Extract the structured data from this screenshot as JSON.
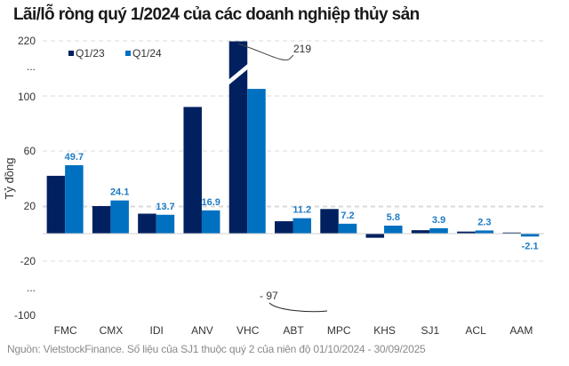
{
  "title": "Lãi/lỗ ròng quý 1/2024 của các doanh nghiệp thủy sản",
  "source": "Nguồn: VietstockFinance. Số liệu của SJ1 thuộc quý 2 của niên độ 01/10/2024  - 30/09/2025",
  "colors": {
    "q1_23": "#002060",
    "q1_24": "#0070c0",
    "label": "#1f7bc4",
    "grid": "#d9d9d9"
  },
  "legend": [
    {
      "name": "Q1/23",
      "color": "#002060"
    },
    {
      "name": "Q1/24",
      "color": "#0070c0"
    }
  ],
  "yaxis": {
    "label": "Tỷ đồng",
    "ticks": [
      "220",
      "...",
      "100",
      "60",
      "20",
      "-20",
      "...",
      "-100"
    ]
  },
  "annotations": {
    "vhc_q1_23": "219",
    "mpc_q1_23": "- 97"
  },
  "chart_data": {
    "type": "bar",
    "title": "Lãi/lỗ ròng quý 1/2024 của các doanh nghiệp thủy sản",
    "xlabel": "",
    "ylabel": "Tỷ đồng",
    "ylim": [
      -100,
      220
    ],
    "axis_break": true,
    "grid": true,
    "legend_position": "top-left",
    "categories": [
      "FMC",
      "CMX",
      "IDI",
      "ANV",
      "VHC",
      "ABT",
      "MPC",
      "KHS",
      "SJ1",
      "ACL",
      "AAM"
    ],
    "series": [
      {
        "name": "Q1/23",
        "values": [
          42,
          20,
          14.5,
          92,
          219,
          9,
          -97,
          -3,
          2.5,
          1.5,
          0.8
        ]
      },
      {
        "name": "Q1/24",
        "values": [
          49.7,
          24.1,
          13.7,
          16.9,
          117,
          11.2,
          7.2,
          5.8,
          3.9,
          2.3,
          -2.1
        ]
      }
    ],
    "data_labels": {
      "Q1/24": [
        "49.7",
        "24.1",
        "13.7",
        "16.9",
        "",
        "11.2",
        "7.2",
        "5.8",
        "3.9",
        "2.3",
        "-2.1"
      ],
      "Q1/23": [
        "",
        "",
        "",
        "",
        "219",
        "",
        "- 97",
        "",
        "",
        "",
        ""
      ]
    }
  }
}
